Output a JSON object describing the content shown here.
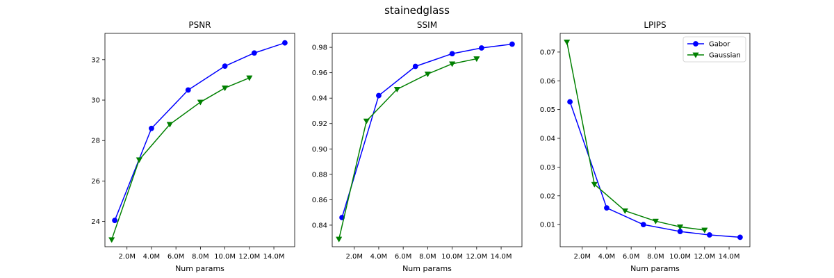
{
  "figure_title": "stainedglass",
  "colors": {
    "gabor": "#0000ff",
    "gaussian": "#008000"
  },
  "chart_data": [
    {
      "type": "line",
      "title": "PSNR",
      "xlabel": "Num params",
      "ylabel": "",
      "xlim": [
        0.2,
        15.7
      ],
      "ylim": [
        22.75,
        33.3
      ],
      "x_ticks": [
        2,
        4,
        6,
        8,
        10,
        12,
        14
      ],
      "x_tick_labels": [
        "2.0M",
        "4.0M",
        "6.0M",
        "8.0M",
        "10.0M",
        "12.0M",
        "14.0M"
      ],
      "y_ticks": [
        24,
        26,
        28,
        30,
        32
      ],
      "y_tick_labels": [
        "24",
        "26",
        "28",
        "30",
        "32"
      ],
      "grid": false,
      "legend": null,
      "series": [
        {
          "name": "Gabor",
          "marker": "circle",
          "color": "#0000ff",
          "x": [
            1.0,
            4.0,
            7.0,
            10.0,
            12.4,
            14.9
          ],
          "y": [
            24.05,
            28.6,
            30.5,
            31.68,
            32.33,
            32.83
          ]
        },
        {
          "name": "Gaussian",
          "marker": "triangle-down",
          "color": "#008000",
          "x": [
            0.75,
            3.0,
            5.5,
            8.0,
            10.0,
            12.0
          ],
          "y": [
            23.1,
            27.05,
            28.8,
            29.9,
            30.6,
            31.1
          ]
        }
      ]
    },
    {
      "type": "line",
      "title": "SSIM",
      "xlabel": "Num params",
      "ylabel": "",
      "xlim": [
        0.2,
        15.7
      ],
      "ylim": [
        0.823,
        0.991
      ],
      "x_ticks": [
        2,
        4,
        6,
        8,
        10,
        12,
        14
      ],
      "x_tick_labels": [
        "2.0M",
        "4.0M",
        "6.0M",
        "8.0M",
        "10.0M",
        "12.0M",
        "14.0M"
      ],
      "y_ticks": [
        0.84,
        0.86,
        0.88,
        0.9,
        0.92,
        0.94,
        0.96,
        0.98
      ],
      "y_tick_labels": [
        "0.84",
        "0.86",
        "0.88",
        "0.90",
        "0.92",
        "0.94",
        "0.96",
        "0.98"
      ],
      "grid": false,
      "legend": null,
      "series": [
        {
          "name": "Gabor",
          "marker": "circle",
          "color": "#0000ff",
          "x": [
            1.0,
            4.0,
            7.0,
            10.0,
            12.4,
            14.9
          ],
          "y": [
            0.846,
            0.942,
            0.965,
            0.975,
            0.9795,
            0.9825
          ]
        },
        {
          "name": "Gaussian",
          "marker": "triangle-down",
          "color": "#008000",
          "x": [
            0.75,
            3.0,
            5.5,
            8.0,
            10.0,
            12.0
          ],
          "y": [
            0.829,
            0.922,
            0.947,
            0.959,
            0.967,
            0.971
          ]
        }
      ]
    },
    {
      "type": "line",
      "title": "LPIPS",
      "xlabel": "Num params",
      "ylabel": "",
      "xlim": [
        0.2,
        15.7
      ],
      "ylim": [
        0.0023,
        0.0765
      ],
      "x_ticks": [
        2,
        4,
        6,
        8,
        10,
        12,
        14
      ],
      "x_tick_labels": [
        "2.0M",
        "4.0M",
        "6.0M",
        "8.0M",
        "10.0M",
        "12.0M",
        "14.0M"
      ],
      "y_ticks": [
        0.01,
        0.02,
        0.03,
        0.04,
        0.05,
        0.06,
        0.07
      ],
      "y_tick_labels": [
        "0.01",
        "0.02",
        "0.03",
        "0.04",
        "0.05",
        "0.06",
        "0.07"
      ],
      "grid": false,
      "legend": "top-right",
      "series": [
        {
          "name": "Gabor",
          "marker": "circle",
          "color": "#0000ff",
          "x": [
            1.0,
            4.0,
            7.0,
            10.0,
            12.4,
            14.9
          ],
          "y": [
            0.0527,
            0.0158,
            0.01,
            0.0076,
            0.0064,
            0.0056
          ]
        },
        {
          "name": "Gaussian",
          "marker": "triangle-down",
          "color": "#008000",
          "x": [
            0.75,
            3.0,
            5.5,
            8.0,
            10.0,
            12.0
          ],
          "y": [
            0.0735,
            0.024,
            0.0148,
            0.0112,
            0.0092,
            0.0081
          ]
        }
      ]
    }
  ]
}
